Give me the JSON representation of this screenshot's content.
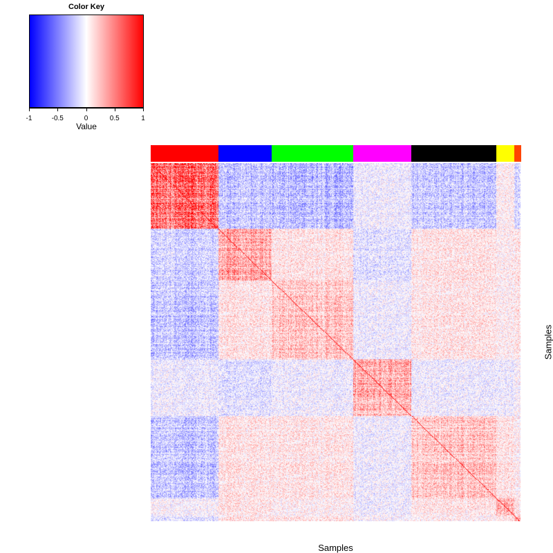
{
  "chart_data": {
    "type": "heatmap",
    "title": "",
    "xlabel": "Samples",
    "ylabel": "Samples",
    "value_range": [
      -1,
      1
    ],
    "diagonal_value": 1,
    "color_key": {
      "title": "Color Key",
      "xlabel": "Value",
      "ticks": [
        "-1",
        "-0.5",
        "0",
        "0.5",
        "1"
      ],
      "tick_values": [
        -1,
        -0.5,
        0,
        0.5,
        1
      ],
      "low_color": "#0000ff",
      "mid_color": "#ffffff",
      "high_color": "#ff0000"
    },
    "groups": [
      {
        "name": "red",
        "color": "#ff0000",
        "n_samples": 98
      },
      {
        "name": "blue",
        "color": "#0000ff",
        "n_samples": 77
      },
      {
        "name": "green",
        "color": "#00ff00",
        "n_samples": 118
      },
      {
        "name": "magenta",
        "color": "#ff00ff",
        "n_samples": 84
      },
      {
        "name": "black",
        "color": "#000000",
        "n_samples": 123
      },
      {
        "name": "yellow",
        "color": "#ffff00",
        "n_samples": 26
      },
      {
        "name": "orange",
        "color": "#ff4500",
        "n_samples": 9
      }
    ],
    "mean_correlation_between_groups": [
      [
        0.55,
        -0.2,
        -0.25,
        -0.05,
        -0.2,
        0.05,
        -0.15
      ],
      [
        -0.15,
        0.3,
        0.1,
        -0.1,
        0.1,
        0.05,
        0.1
      ],
      [
        -0.2,
        0.1,
        0.22,
        -0.05,
        0.1,
        0.05,
        0.1
      ],
      [
        -0.05,
        -0.1,
        -0.05,
        0.28,
        -0.05,
        -0.05,
        0.0
      ],
      [
        -0.2,
        0.1,
        0.1,
        -0.05,
        0.22,
        0.1,
        0.05
      ],
      [
        0.0,
        0.1,
        0.05,
        -0.05,
        0.1,
        0.3,
        0.1
      ],
      [
        -0.1,
        0.1,
        0.1,
        0.0,
        0.05,
        0.1,
        0.3
      ]
    ]
  }
}
